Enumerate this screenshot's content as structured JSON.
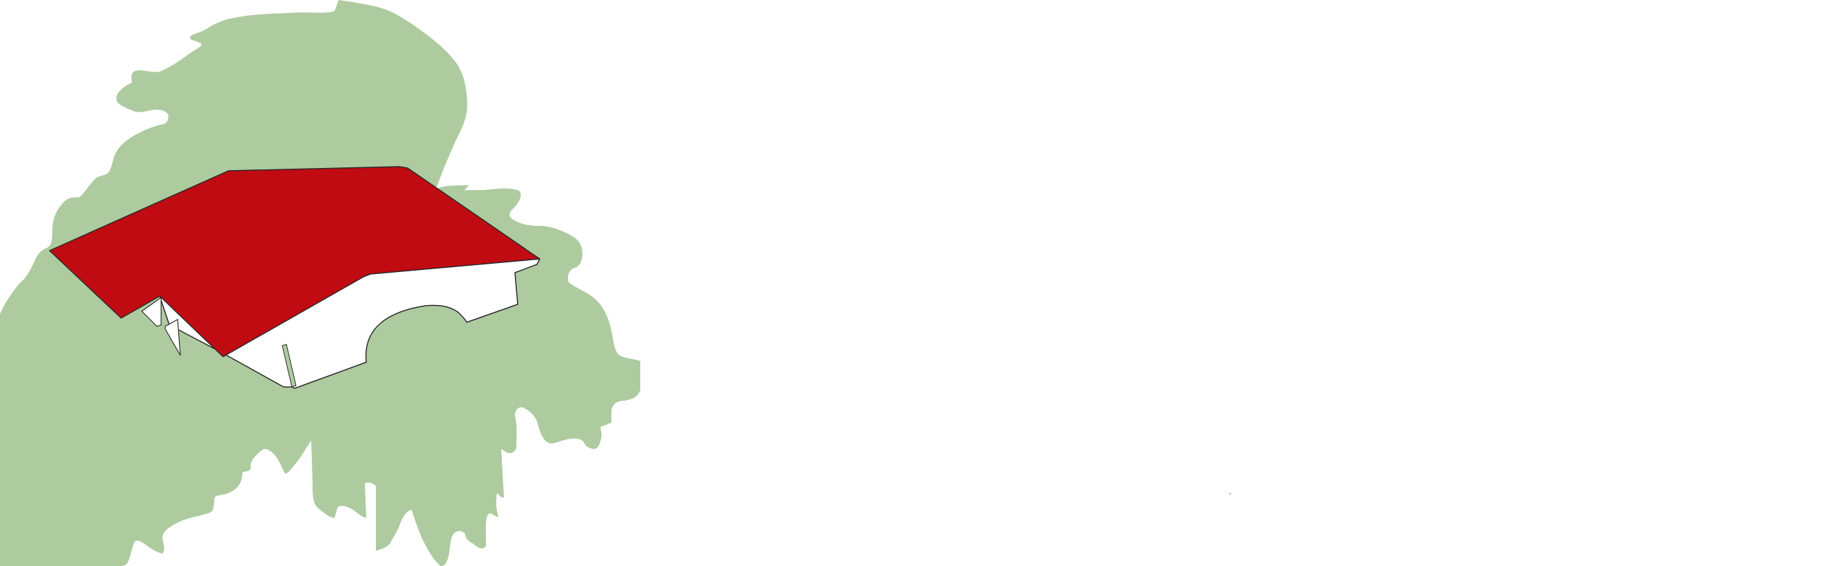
{
  "colors": {
    "background": "#ffffff",
    "landmass": "#adcb9f",
    "roof": "#c00b12",
    "house_wall": "#ffffff",
    "outline": "#2a2a2a",
    "speck": "#8a8a8a"
  }
}
